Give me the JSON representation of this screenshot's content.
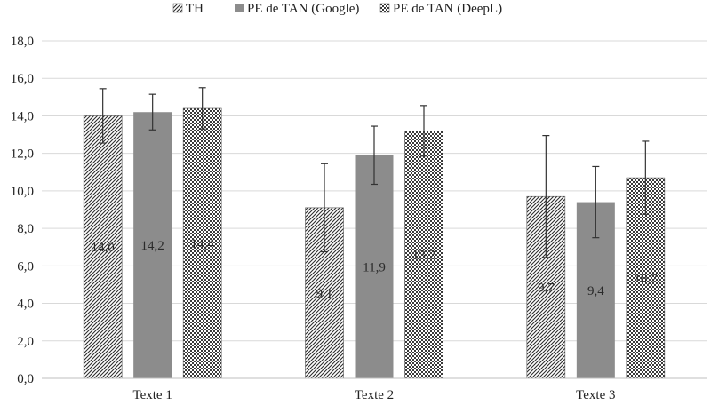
{
  "chart_data": {
    "type": "bar",
    "title": "",
    "xlabel": "",
    "ylabel": "",
    "categories": [
      "Texte 1",
      "Texte 2",
      "Texte 3"
    ],
    "ylim": [
      0,
      18
    ],
    "yticks": [
      "0,0",
      "2,0",
      "4,0",
      "6,0",
      "8,0",
      "10,0",
      "12,0",
      "14,0",
      "16,0",
      "18,0"
    ],
    "grid": true,
    "legend_position": "top",
    "series": [
      {
        "name": "TH",
        "pattern": "diagonal-stripes",
        "color": "#3a3a3a",
        "values": [
          14.0,
          9.1,
          9.7
        ],
        "labels": [
          "14,0",
          "9,1",
          "9,7"
        ],
        "error": [
          1.45,
          2.35,
          3.25
        ]
      },
      {
        "name": "PE de TAN (Google)",
        "pattern": "solid",
        "color": "#8c8c8c",
        "values": [
          14.2,
          11.9,
          9.4
        ],
        "labels": [
          "14,2",
          "11,9",
          "9,4"
        ],
        "error": [
          0.95,
          1.55,
          1.9
        ]
      },
      {
        "name": "PE de TAN (DeepL)",
        "pattern": "checkered",
        "color": "#3a3a3a",
        "values": [
          14.4,
          13.2,
          10.7
        ],
        "labels": [
          "14,4",
          "13,2",
          "10,7"
        ],
        "error": [
          1.1,
          1.35,
          1.95
        ]
      }
    ]
  }
}
